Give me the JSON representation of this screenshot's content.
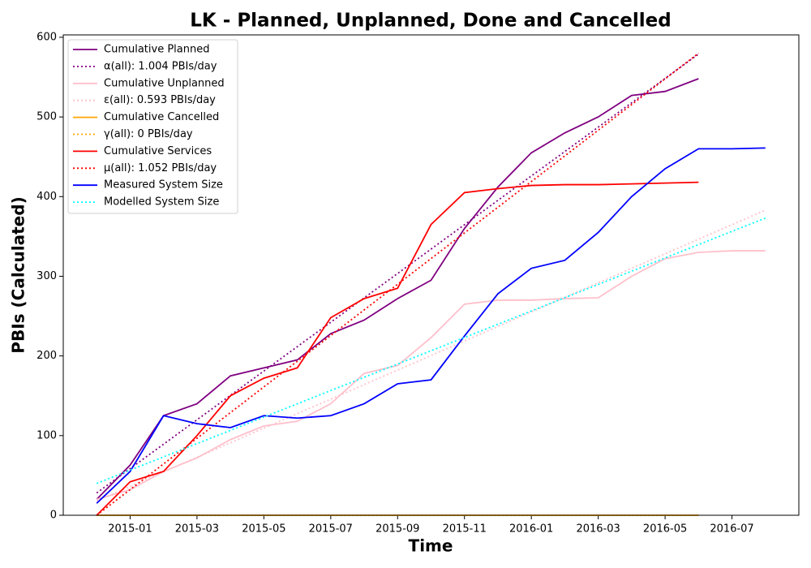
{
  "chart_data": {
    "type": "line",
    "title": "LK - Planned, Unplanned, Done  and Cancelled",
    "xlabel": "Time",
    "ylabel": "PBIs (Calculated)",
    "xlim": [
      "2014-11",
      "2016-09"
    ],
    "xticks": [
      "2015-01",
      "2015-03",
      "2015-05",
      "2015-07",
      "2015-09",
      "2015-11",
      "2016-01",
      "2016-03",
      "2016-05",
      "2016-07"
    ],
    "ylim": [
      0,
      603
    ],
    "yticks": [
      0,
      100,
      200,
      300,
      400,
      500,
      600
    ],
    "legend": "upper left",
    "series": [
      {
        "name": "Cumulative Planned",
        "color": "#800080",
        "style": "solid",
        "x": [
          "2014-12",
          "2015-01",
          "2015-02",
          "2015-03",
          "2015-04",
          "2015-05",
          "2015-06",
          "2015-07",
          "2015-08",
          "2015-09",
          "2015-10",
          "2015-11",
          "2015-12",
          "2016-01",
          "2016-02",
          "2016-03",
          "2016-04",
          "2016-05",
          "2016-06"
        ],
        "values": [
          20,
          63,
          125,
          140,
          175,
          185,
          195,
          228,
          245,
          272,
          295,
          360,
          412,
          455,
          480,
          500,
          527,
          532,
          548
        ]
      },
      {
        "name": "α(all): 1.004 PBIs/day",
        "color": "#800080",
        "style": "dotted",
        "x": [
          "2014-12",
          "2016-06"
        ],
        "values": [
          28,
          579
        ]
      },
      {
        "name": "Cumulative Unplanned",
        "color": "#ffc0cb",
        "style": "solid",
        "x": [
          "2014-12",
          "2015-01",
          "2015-02",
          "2015-03",
          "2015-04",
          "2015-05",
          "2015-06",
          "2015-07",
          "2015-08",
          "2015-09",
          "2015-10",
          "2015-11",
          "2015-12",
          "2016-01",
          "2016-02",
          "2016-03",
          "2016-04",
          "2016-05",
          "2016-06",
          "2016-07",
          "2016-08"
        ],
        "values": [
          20,
          32,
          55,
          72,
          95,
          112,
          118,
          140,
          178,
          188,
          223,
          265,
          270,
          270,
          272,
          273,
          300,
          322,
          330,
          332,
          332
        ]
      },
      {
        "name": "ε(all): 0.593 PBIs/day",
        "color": "#ffc0cb",
        "style": "dotted",
        "x": [
          "2014-12",
          "2016-08"
        ],
        "values": [
          18,
          383
        ]
      },
      {
        "name": "Cumulative Cancelled",
        "color": "#ffa500",
        "style": "solid",
        "x": [
          "2014-12",
          "2016-06"
        ],
        "values": [
          0,
          0
        ]
      },
      {
        "name": "γ(all): 0 PBIs/day",
        "color": "#ffa500",
        "style": "dotted",
        "x": [
          "2014-12",
          "2016-06"
        ],
        "values": [
          0,
          0
        ]
      },
      {
        "name": "Cumulative Services",
        "color": "#ff0000",
        "style": "solid",
        "x": [
          "2014-12",
          "2015-01",
          "2015-02",
          "2015-03",
          "2015-04",
          "2015-05",
          "2015-06",
          "2015-07",
          "2015-08",
          "2015-09",
          "2015-10",
          "2015-11",
          "2015-12",
          "2016-01",
          "2016-02",
          "2016-03",
          "2016-04",
          "2016-05",
          "2016-06"
        ],
        "values": [
          0,
          42,
          55,
          100,
          150,
          172,
          185,
          248,
          272,
          285,
          365,
          405,
          410,
          414,
          415,
          415,
          416,
          417,
          418
        ]
      },
      {
        "name": "μ(all): 1.052 PBIs/day",
        "color": "#ff0000",
        "style": "dotted",
        "x": [
          "2014-12",
          "2016-06"
        ],
        "values": [
          0,
          580
        ]
      },
      {
        "name": "Measured System Size",
        "color": "#0000ff",
        "style": "solid",
        "x": [
          "2014-12",
          "2015-01",
          "2015-02",
          "2015-03",
          "2015-04",
          "2015-05",
          "2015-06",
          "2015-07",
          "2015-08",
          "2015-09",
          "2015-10",
          "2015-11",
          "2015-12",
          "2016-01",
          "2016-02",
          "2016-03",
          "2016-04",
          "2016-05",
          "2016-06",
          "2016-07",
          "2016-08"
        ],
        "values": [
          15,
          55,
          125,
          115,
          110,
          125,
          122,
          125,
          140,
          165,
          170,
          225,
          278,
          310,
          320,
          355,
          400,
          435,
          460,
          460,
          461
        ]
      },
      {
        "name": "Modelled System Size",
        "color": "#00ffff",
        "style": "dotted",
        "x": [
          "2014-12",
          "2016-08"
        ],
        "values": [
          40,
          373
        ]
      }
    ]
  }
}
